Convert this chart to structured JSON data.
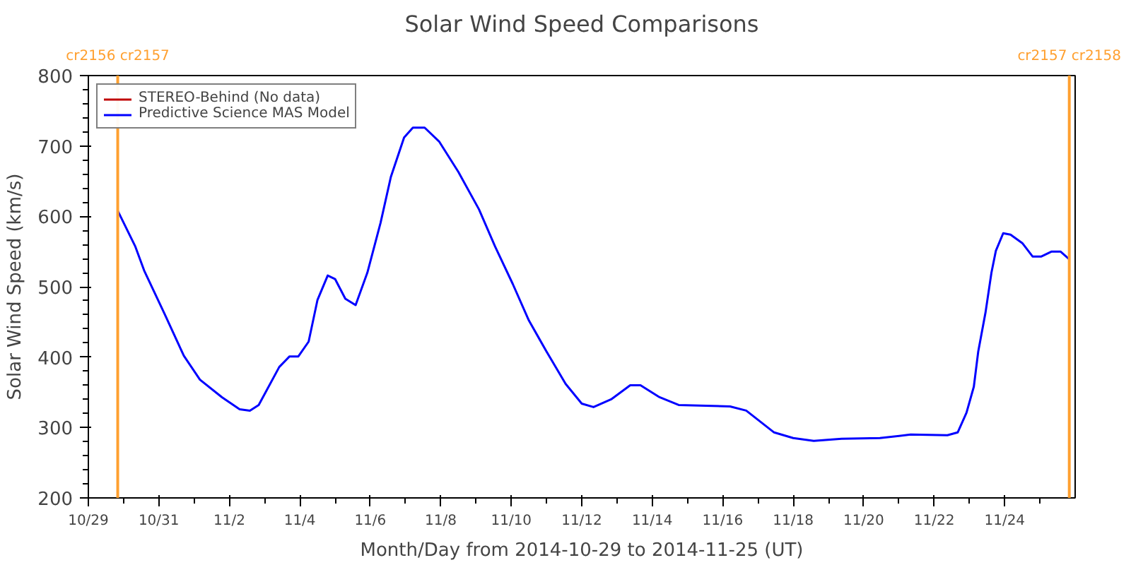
{
  "chart_data": {
    "type": "line",
    "title": "Solar Wind Speed Comparisons",
    "xlabel": "Month/Day from 2014-10-29 to 2014-11-25 (UT)",
    "ylabel": "Solar Wind Speed (km/s)",
    "xlim": [
      "2014-10-29T00:00",
      "2014-11-26T00:00"
    ],
    "xticks": [
      {
        "value": "2014-10-29",
        "label": "10/29"
      },
      {
        "value": "2014-10-30",
        "label": null
      },
      {
        "value": "2014-10-31",
        "label": "10/31"
      },
      {
        "value": "2014-11-01",
        "label": null
      },
      {
        "value": "2014-11-02",
        "label": "11/2"
      },
      {
        "value": "2014-11-03",
        "label": null
      },
      {
        "value": "2014-11-04",
        "label": "11/4"
      },
      {
        "value": "2014-11-05",
        "label": null
      },
      {
        "value": "2014-11-06",
        "label": "11/6"
      },
      {
        "value": "2014-11-07",
        "label": null
      },
      {
        "value": "2014-11-08",
        "label": "11/8"
      },
      {
        "value": "2014-11-09",
        "label": null
      },
      {
        "value": "2014-11-10",
        "label": "11/10"
      },
      {
        "value": "2014-11-11",
        "label": null
      },
      {
        "value": "2014-11-12",
        "label": "11/12"
      },
      {
        "value": "2014-11-13",
        "label": null
      },
      {
        "value": "2014-11-14",
        "label": "11/14"
      },
      {
        "value": "2014-11-15",
        "label": null
      },
      {
        "value": "2014-11-16",
        "label": "11/16"
      },
      {
        "value": "2014-11-17",
        "label": null
      },
      {
        "value": "2014-11-18",
        "label": "11/18"
      },
      {
        "value": "2014-11-19",
        "label": null
      },
      {
        "value": "2014-11-20",
        "label": "11/20"
      },
      {
        "value": "2014-11-21",
        "label": null
      },
      {
        "value": "2014-11-22",
        "label": "11/22"
      },
      {
        "value": "2014-11-23",
        "label": null
      },
      {
        "value": "2014-11-24",
        "label": "11/24"
      },
      {
        "value": "2014-11-25",
        "label": null
      }
    ],
    "ylim": [
      200,
      800
    ],
    "yticks": [
      200,
      {
        "value": 220,
        "label": null
      },
      {
        "value": 240,
        "label": null
      },
      {
        "value": 260,
        "label": null
      },
      {
        "value": 280,
        "label": null
      },
      300,
      {
        "value": 320,
        "label": null
      },
      {
        "value": 340,
        "label": null
      },
      {
        "value": 360,
        "label": null
      },
      {
        "value": 380,
        "label": null
      },
      400,
      {
        "value": 420,
        "label": null
      },
      {
        "value": 440,
        "label": null
      },
      {
        "value": 460,
        "label": null
      },
      {
        "value": 480,
        "label": null
      },
      500,
      {
        "value": 520,
        "label": null
      },
      {
        "value": 540,
        "label": null
      },
      {
        "value": 560,
        "label": null
      },
      {
        "value": 580,
        "label": null
      },
      600,
      {
        "value": 620,
        "label": null
      },
      {
        "value": 640,
        "label": null
      },
      {
        "value": 660,
        "label": null
      },
      {
        "value": 680,
        "label": null
      },
      700,
      {
        "value": 720,
        "label": null
      },
      {
        "value": 740,
        "label": null
      },
      {
        "value": 760,
        "label": null
      },
      {
        "value": 780,
        "label": null
      },
      800
    ],
    "grid": false,
    "legend": "top left",
    "ref_lines": [
      {
        "axis": "x",
        "value": "2014-10-29T20:00",
        "label": "cr2156 cr2157",
        "color": "#ffa030"
      },
      {
        "axis": "x",
        "value": "2014-11-25T20:00",
        "label": "cr2157 cr2158",
        "color": "#ffa030"
      }
    ],
    "series": [
      {
        "name": "STEREO-Behind (No data)",
        "color": "#c00000"
      },
      {
        "name": "Predictive Science MAS Model",
        "color": "#0000ff",
        "x": [
          "2014-10-29T20:00",
          "2014-10-30T08:00",
          "2014-10-30T14:00",
          "2014-10-31T04:00",
          "2014-10-31T17:00",
          "2014-11-01T04:00",
          "2014-11-01T19:00",
          "2014-11-02T07:00",
          "2014-11-02T14:00",
          "2014-11-02T20:00",
          "2014-11-03T10:00",
          "2014-11-03T17:00",
          "2014-11-03T23:00",
          "2014-11-04T06:00",
          "2014-11-04T12:00",
          "2014-11-04T19:00",
          "2014-11-05T00:00",
          "2014-11-05T07:00",
          "2014-11-05T14:00",
          "2014-11-05T22:00",
          "2014-11-06T07:00",
          "2014-11-06T14:00",
          "2014-11-06T23:00",
          "2014-11-07T05:00",
          "2014-11-07T13:00",
          "2014-11-07T23:00",
          "2014-11-08T12:00",
          "2014-11-09T02:00",
          "2014-11-09T13:00",
          "2014-11-10T01:00",
          "2014-11-10T12:00",
          "2014-11-11T00:00",
          "2014-11-11T13:00",
          "2014-11-12T00:00",
          "2014-11-12T08:00",
          "2014-11-12T20:00",
          "2014-11-13T09:00",
          "2014-11-13T16:00",
          "2014-11-14T05:00",
          "2014-11-14T18:00",
          "2014-11-16T05:00",
          "2014-11-16T16:00",
          "2014-11-17T11:00",
          "2014-11-18T00:00",
          "2014-11-18T14:00",
          "2014-11-19T09:00",
          "2014-11-20T11:00",
          "2014-11-21T08:00",
          "2014-11-22T09:00",
          "2014-11-22T16:00",
          "2014-11-22T22:00",
          "2014-11-23T03:00",
          "2014-11-23T06:00",
          "2014-11-23T11:00",
          "2014-11-23T15:00",
          "2014-11-23T18:00",
          "2014-11-23T23:00",
          "2014-11-24T04:00",
          "2014-11-24T12:00",
          "2014-11-24T19:00",
          "2014-11-25T01:00",
          "2014-11-25T08:00",
          "2014-11-25T14:00",
          "2014-11-25T20:00"
        ],
        "values": [
          608,
          557,
          523,
          461,
          402,
          368,
          343,
          326,
          324,
          332,
          386,
          401,
          401,
          422,
          481,
          516,
          511,
          483,
          474,
          520,
          591,
          656,
          712,
          726,
          726,
          706,
          663,
          610,
          557,
          504,
          452,
          408,
          362,
          334,
          329,
          340,
          360,
          360,
          343,
          332,
          330,
          324,
          293,
          285,
          281,
          284,
          285,
          290,
          289,
          293,
          321,
          358,
          408,
          464,
          520,
          551,
          576,
          574,
          562,
          543,
          543,
          550,
          550,
          539
        ]
      }
    ]
  }
}
